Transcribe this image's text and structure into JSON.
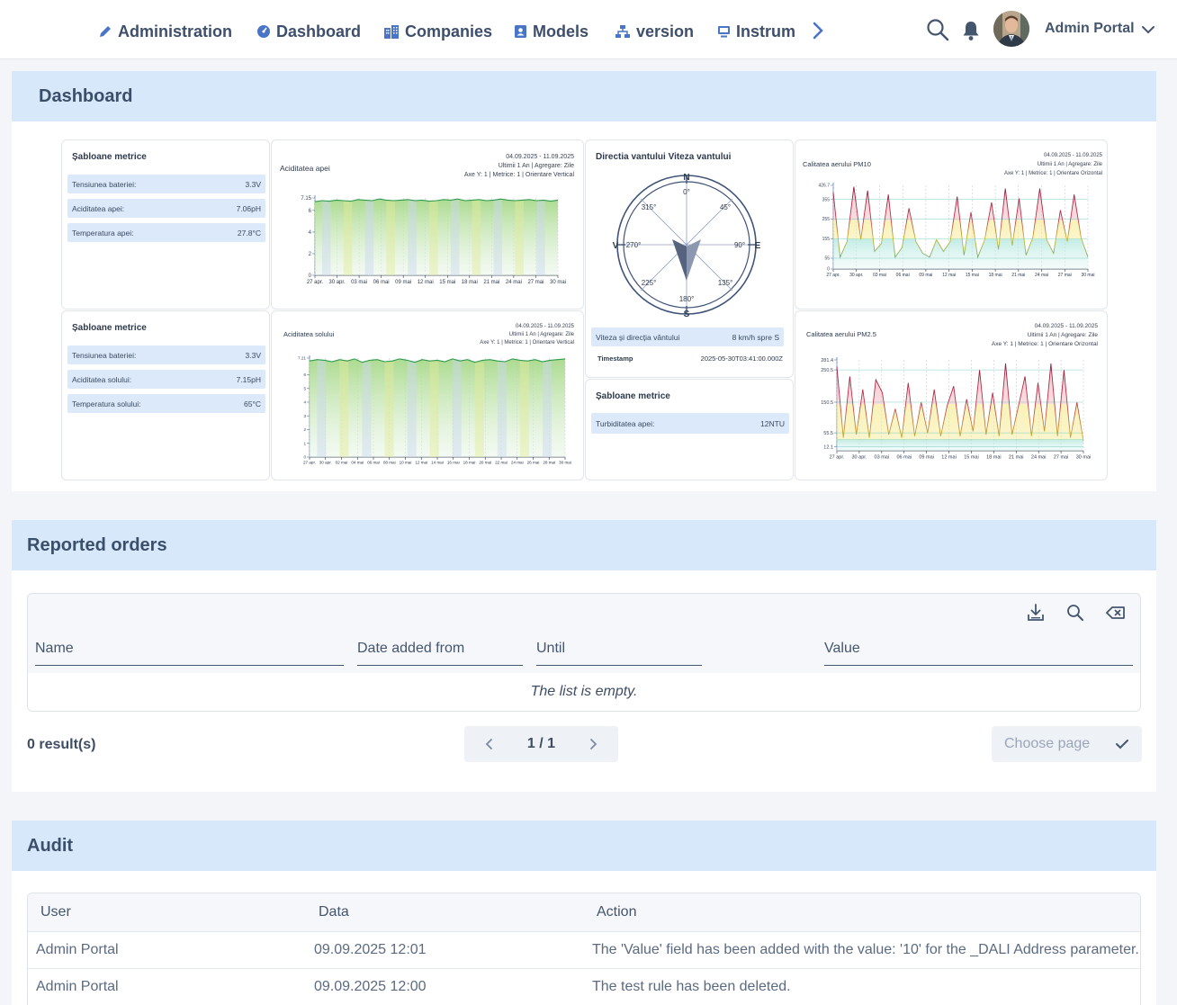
{
  "nav": {
    "items": [
      {
        "label": "Administration",
        "icon": "pencil-icon"
      },
      {
        "label": "Dashboard",
        "icon": "gauge-icon"
      },
      {
        "label": "Companies",
        "icon": "buildings-icon"
      },
      {
        "label": "Models",
        "icon": "id-card-icon"
      },
      {
        "label": "version",
        "icon": "sitemap-icon"
      },
      {
        "label": "Instrum",
        "icon": "monitor-icon"
      }
    ],
    "user": "Admin Portal"
  },
  "dashboard": {
    "title": "Dashboard",
    "widgets": {
      "water_metrics": {
        "title": "Șabloane metrice",
        "rows": [
          {
            "label": "Tensiunea bateriei:",
            "value": "3.3V"
          },
          {
            "label": "Aciditatea apei:",
            "value": "7.06pH"
          },
          {
            "label": "Temperatura apei:",
            "value": "27.8°C"
          }
        ]
      },
      "soil_metrics": {
        "title": "Șabloane metrice",
        "rows": [
          {
            "label": "Tensiunea bateriei:",
            "value": "3.3V"
          },
          {
            "label": "Aciditatea solului:",
            "value": "7.15pH"
          },
          {
            "label": "Temperatura solului:",
            "value": "65°C"
          }
        ]
      },
      "wind": {
        "title": "Directia vantului Viteza vantului",
        "rose_labels": {
          "N": "N",
          "E": "E",
          "S": "S",
          "W": "V",
          "d0": "0°",
          "d45": "45°",
          "d90": "90°",
          "d135": "135°",
          "d180": "180°",
          "d225": "225°",
          "d270": "270°",
          "d315": "315°"
        },
        "speed_label": "Viteza și direcția vântului",
        "speed_value": "8 km/h spre S",
        "ts_label": "Timestamp",
        "ts_value": "2025-05-30T03:41:00.000Z"
      },
      "turbidity": {
        "title": "Șabloane metrice",
        "rows": [
          {
            "label": "Turbiditatea apei:",
            "value": "12NTU"
          }
        ]
      }
    },
    "colors": {
      "green": "#3aa35a",
      "red": "#c0354b",
      "yellow": "#e8d44a",
      "teal": "#6cc9c0",
      "blue": "#4a74c6"
    }
  },
  "chart_data": [
    {
      "type": "area",
      "title": "Aciditatea apei",
      "meta": [
        "04.09.2025 - 11.09.2025",
        "Ultimii 1 An | Agregare: Zile",
        "Axe Y: 1 | Metrice: 1 | Orientare Vertical"
      ],
      "ylim": [
        0,
        7.15
      ],
      "yticks": [
        "0",
        "2",
        "4",
        "6",
        "7.15"
      ],
      "ytick_values": [
        0,
        2,
        4,
        6,
        7.15
      ],
      "xticks": [
        "27 apr.",
        "30 apr.",
        "03 mai",
        "06 mai",
        "09 mai",
        "12 mai",
        "15 mai",
        "18 mai",
        "21 mai",
        "24 mai",
        "27 mai",
        "30 mai"
      ],
      "values": [
        6.8,
        6.9,
        6.85,
        6.95,
        6.9,
        6.85,
        7.0,
        6.95,
        6.9,
        7.05,
        6.95,
        6.9,
        6.95,
        7.0,
        6.9,
        6.95,
        6.85,
        6.9,
        7.0,
        6.95,
        7.05,
        6.9,
        6.95,
        7.0,
        6.9,
        6.95,
        7.05,
        6.95,
        6.9,
        6.95,
        7.0,
        6.9,
        6.95,
        6.85,
        6.95
      ]
    },
    {
      "type": "area",
      "title": "Aciditatea solului",
      "meta": [
        "04.09.2025 - 11.09.2025",
        "Ultimii 1 An | Agregare: Zile",
        "Axe Y: 1 | Metrice: 1 | Orientare Vertical"
      ],
      "ylim": [
        0,
        7.21
      ],
      "yticks": [
        "0",
        "1",
        "2",
        "3",
        "4",
        "5",
        "6",
        "7.21"
      ],
      "ytick_values": [
        0,
        1,
        2,
        3,
        4,
        5,
        6,
        7.21
      ],
      "xticks": [
        "27 apr.",
        "30 apr.",
        "02 mai",
        "04 mai",
        "06 mai",
        "08 mai",
        "10 mai",
        "12 mai",
        "14 mai",
        "16 mai",
        "18 mai",
        "20 mai",
        "22 mai",
        "24 mai",
        "26 mai",
        "28 mai",
        "30 mai"
      ],
      "values": [
        7.0,
        7.1,
        7.05,
        6.95,
        7.1,
        7.0,
        7.15,
        6.9,
        7.05,
        7.1,
        6.95,
        7.0,
        7.15,
        7.05,
        6.9,
        7.1,
        7.0,
        7.05,
        6.95,
        7.15,
        7.0,
        7.1,
        6.9,
        7.05,
        7.1,
        7.0,
        6.95,
        7.15,
        7.05,
        7.0,
        7.1,
        6.95,
        7.05,
        7.1,
        7.15
      ]
    },
    {
      "type": "line",
      "title": "Calitatea aerului PM10",
      "meta": [
        "04.09.2025 - 11.09.2025",
        "Ultimii 1 An | Agregare: Zile",
        "Axe Y: 1 | Metrice: 1 | Orientare Orizontal"
      ],
      "ylim": [
        0,
        426.7
      ],
      "yticks": [
        "0",
        "55",
        "155",
        "255",
        "355",
        "426.7"
      ],
      "ytick_values": [
        0,
        55,
        155,
        255,
        355,
        426.7
      ],
      "bands": [
        55,
        155,
        255,
        355
      ],
      "xticks": [
        "27 apr.",
        "30 apr.",
        "03 mai",
        "06 mai",
        "09 mai",
        "12 mai",
        "15 mai",
        "18 mai",
        "21 mai",
        "24 mai",
        "27 mai",
        "30 mai"
      ],
      "values": [
        390,
        60,
        140,
        420,
        150,
        400,
        90,
        130,
        380,
        60,
        110,
        310,
        140,
        80,
        60,
        150,
        90,
        140,
        370,
        70,
        290,
        60,
        150,
        340,
        100,
        410,
        120,
        360,
        70,
        160,
        410,
        150,
        80,
        300,
        140,
        380,
        160,
        60
      ]
    },
    {
      "type": "line",
      "title": "Calitatea aerului PM2.5",
      "meta": [
        "04.09.2025 - 11.09.2025",
        "Ultimii 1 An | Agregare: Zile",
        "Axe Y: 1 | Metrice: 1 | Orientare Orizontal"
      ],
      "ylim": [
        0,
        281.4
      ],
      "yticks": [
        "12.1",
        "55.5",
        "150.5",
        "250.5",
        "281.4"
      ],
      "ytick_values": [
        12.1,
        55.5,
        150.5,
        250.5,
        281.4
      ],
      "bands": [
        12.1,
        35.5,
        55.5,
        150.5,
        250.5
      ],
      "xticks": [
        "27 apr.",
        "30 apr.",
        "03 mai",
        "06 mai",
        "09 mai",
        "12 mai",
        "15 mai",
        "18 mai",
        "21 mai",
        "24 mai",
        "27 mai",
        "30 mai"
      ],
      "values": [
        260,
        40,
        230,
        50,
        190,
        40,
        220,
        180,
        50,
        130,
        40,
        210,
        45,
        150,
        55,
        190,
        45,
        140,
        200,
        45,
        160,
        60,
        250,
        50,
        180,
        45,
        270,
        50,
        140,
        230,
        45,
        210,
        60,
        270,
        45,
        250,
        40,
        150,
        30
      ]
    }
  ],
  "orders": {
    "title": "Reported orders",
    "filters": [
      "Name",
      "Date added from",
      "Until",
      "Value"
    ],
    "empty": "The list is empty.",
    "results": "0 result(s)",
    "page": "1 / 1",
    "choose_page": "Choose page"
  },
  "audit": {
    "title": "Audit",
    "columns": [
      "User",
      "Data",
      "Action"
    ],
    "rows": [
      {
        "user": "Admin Portal",
        "date": "09.09.2025 12:01",
        "action": "The 'Value' field has been added with the value: '10' for the _DALI Address parameter."
      },
      {
        "user": "Admin Portal",
        "date": "09.09.2025 12:00",
        "action": "The test rule has been deleted."
      }
    ]
  }
}
